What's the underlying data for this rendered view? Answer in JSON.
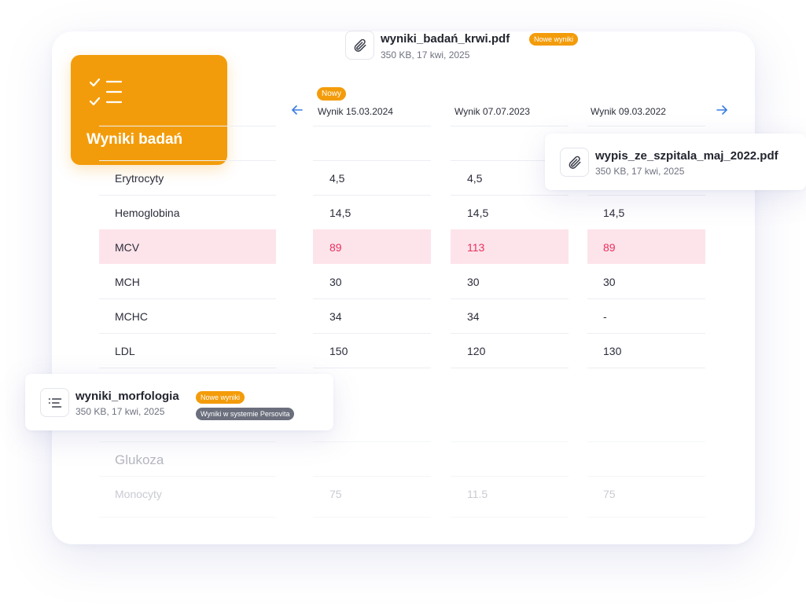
{
  "badge": {
    "title": "Wyniki badań",
    "icon": "checklist-icon"
  },
  "top_file": {
    "name": "wyniki_badań_krwi.pdf",
    "meta": "350 KB, 17 kwi, 2025",
    "pill": "Nowe wyniki",
    "icon": "paperclip-icon"
  },
  "right_file": {
    "name": "wypis_ze_szpitala_maj_2022.pdf",
    "meta": "350 KB, 17 kwi, 2025",
    "icon": "paperclip-icon"
  },
  "left_file": {
    "name": "wyniki_morfologia",
    "meta": "350 KB, 17 kwi, 2025",
    "pill_new": "Nowe wyniki",
    "pill_system": "Wyniki w systemie Persovita",
    "icon": "list-icon"
  },
  "table": {
    "new_tag": "Nowy",
    "columns": [
      "Wynik 15.03.2024",
      "Wynik 07.07.2023",
      "Wynik 09.03.2022"
    ],
    "rows": [
      {
        "label": "Erytrocyty",
        "values": [
          "4,5",
          "4,5",
          ""
        ]
      },
      {
        "label": "Hemoglobina",
        "values": [
          "14,5",
          "14,5",
          "14,5"
        ]
      },
      {
        "label": "MCV",
        "values": [
          "89",
          "113",
          "89"
        ]
      },
      {
        "label": "MCH",
        "values": [
          "30",
          "30",
          "30"
        ]
      },
      {
        "label": "MCHC",
        "values": [
          "34",
          "34",
          "-"
        ]
      },
      {
        "label": "LDL",
        "values": [
          "150",
          "120",
          "130"
        ]
      }
    ],
    "section_title": "Glukoza",
    "faded_row": {
      "label": "Monocyty",
      "values": [
        "75",
        "11.5",
        "75"
      ]
    }
  },
  "colors": {
    "accent": "#f39c0b",
    "highlight": "#fde4ea",
    "alert_text": "#e8305f",
    "arrow": "#3a7ce0"
  }
}
